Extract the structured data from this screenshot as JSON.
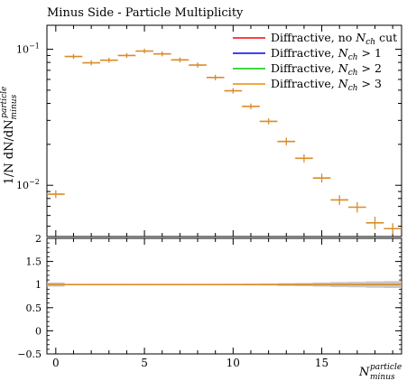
{
  "chart_data": {
    "type": "scatter",
    "title": "Minus Side - Particle Multiplicity",
    "ylabel": "1/N dN/dN_minus^particle",
    "xlabel": "N_minus^particle",
    "yscale": "log",
    "ylim": [
      0.0042,
      0.15
    ],
    "xlim": [
      -0.5,
      19.5
    ],
    "x_ticks": [
      0,
      5,
      10,
      15
    ],
    "y_ticks": [
      {
        "value": 0.01,
        "label": "10^{-2}"
      },
      {
        "value": 0.1,
        "label": "10^{-1}"
      }
    ],
    "legend_position": "top-right",
    "legend": [
      {
        "label": "Diffractive, no N_ch cut",
        "color": "#ff0000"
      },
      {
        "label": "Diffractive, N_ch > 1",
        "color": "#0000ff"
      },
      {
        "label": "Diffractive, N_ch > 2",
        "color": "#00cc00"
      },
      {
        "label": "Diffractive, N_ch > 3",
        "color": "#ee8800"
      }
    ],
    "x": [
      0,
      1,
      2,
      3,
      4,
      5,
      6,
      7,
      8,
      9,
      10,
      11,
      12,
      13,
      14,
      15,
      16,
      17,
      18,
      19
    ],
    "values": [
      0.0086,
      0.0885,
      0.0795,
      0.083,
      0.09,
      0.097,
      0.0925,
      0.0835,
      0.0765,
      0.062,
      0.0495,
      0.038,
      0.0295,
      0.021,
      0.0158,
      0.0113,
      0.0078,
      0.0069,
      0.0053,
      0.0048
    ],
    "errors": [
      0.0003,
      0.001,
      0.001,
      0.001,
      0.001,
      0.001,
      0.001,
      0.001,
      0.001,
      0.001,
      0.0008,
      0.0007,
      0.0006,
      0.0007,
      0.0006,
      0.0005,
      0.0004,
      0.0004,
      0.0004,
      0.0003
    ],
    "ratio": {
      "ylim": [
        -0.5,
        2
      ],
      "y_ticks": [
        -0.5,
        0,
        0.5,
        1,
        1.5,
        2
      ],
      "values": [
        1,
        1,
        1,
        1,
        1,
        1,
        1,
        1,
        1,
        1,
        1,
        1,
        1,
        1,
        1,
        1,
        1,
        1,
        1,
        1
      ],
      "band": [
        0.045,
        0.012,
        0.012,
        0.012,
        0.012,
        0.012,
        0.012,
        0.012,
        0.012,
        0.014,
        0.016,
        0.018,
        0.02,
        0.03,
        0.035,
        0.045,
        0.055,
        0.06,
        0.07,
        0.075
      ]
    },
    "colors": {
      "series": "#d98c2b",
      "band": "#b4b4b4",
      "frame": "#000000"
    }
  }
}
